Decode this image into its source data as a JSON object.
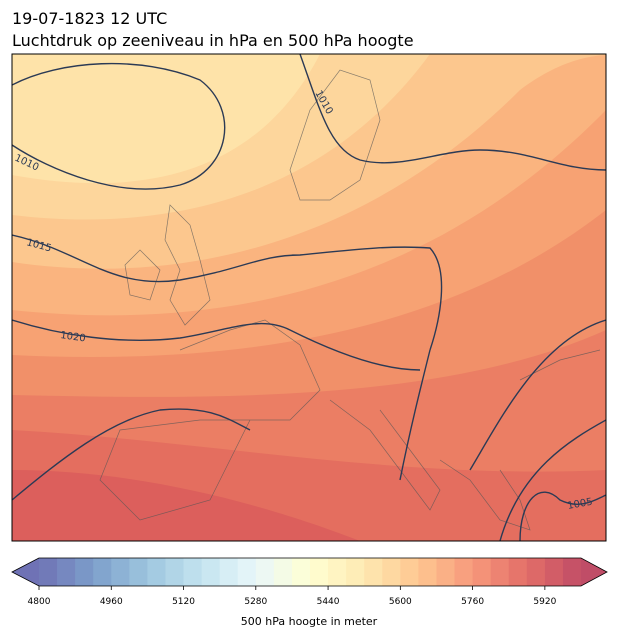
{
  "header": {
    "date": "19-07-1823 12 UTC",
    "title": "Luchtdruk op zeeniveau in hPa en 500 hPa hoogte"
  },
  "isobar_labels": [
    1010,
    1010,
    1015,
    1020,
    1005
  ],
  "colorbar": {
    "label": "500 hPa hoogte in meter",
    "lim": [
      4800,
      6000
    ],
    "ticks": [
      4800,
      4960,
      5120,
      5280,
      5440,
      5600,
      5760,
      5920
    ]
  }
}
